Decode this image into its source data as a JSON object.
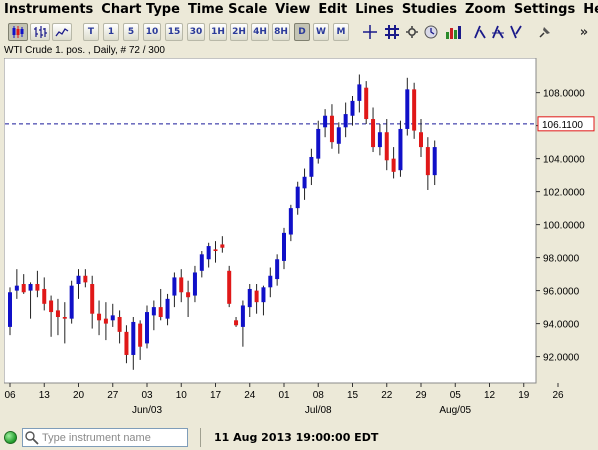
{
  "menu": [
    "Instruments",
    "Chart Type",
    "Time Scale",
    "View",
    "Edit",
    "Lines",
    "Studies",
    "Zoom",
    "Settings",
    "Help"
  ],
  "toolbar": {
    "timeframes": [
      "T",
      "1",
      "5",
      "10",
      "15",
      "30",
      "1H",
      "2H",
      "4H",
      "8H",
      "D",
      "W",
      "M"
    ],
    "selected_timeframe": "D",
    "overflow": "»"
  },
  "chart_header": "WTI Crude 1. pos. , Daily, # 72 / 300",
  "status": {
    "search_placeholder": "Type instrument name",
    "datetime": "11 Aug 2013 19:00:00 EDT"
  },
  "colors": {
    "up": "#1010c8",
    "down": "#e01818",
    "current_line": "#1a1a9a"
  },
  "chart_data": {
    "type": "candlestick",
    "instrument": "WTI Crude 1. pos.",
    "timeframe": "Daily",
    "y_ticks": [
      92,
      94,
      96,
      98,
      100,
      102,
      104,
      106,
      108
    ],
    "y_tick_labels": [
      "92.0000",
      "94.0000",
      "96.0000",
      "98.0000",
      "100.0000",
      "102.0000",
      "104.0000",
      "106.0000",
      "108.0000"
    ],
    "ylim": [
      90.4,
      110.1
    ],
    "current_price": 106.11,
    "current_price_label": "106.1100",
    "x_tick_labels": [
      "06",
      "13",
      "20",
      "27",
      "03",
      "10",
      "17",
      "24",
      "01",
      "08",
      "15",
      "22",
      "29",
      "05",
      "12",
      "19",
      "26"
    ],
    "x_tick_index": [
      0,
      5,
      10,
      15,
      20,
      25,
      30,
      35,
      40,
      45,
      50,
      55,
      60,
      65,
      70,
      75,
      80
    ],
    "month_labels": [
      {
        "label": "Jun/03",
        "index": 20
      },
      {
        "label": "Jul/08",
        "index": 45
      },
      {
        "label": "Aug/05",
        "index": 65
      }
    ],
    "candles": [
      {
        "i": 0,
        "o": 93.8,
        "h": 96.2,
        "l": 93.3,
        "c": 95.9
      },
      {
        "i": 1,
        "o": 96.0,
        "h": 97.3,
        "l": 95.5,
        "c": 96.3
      },
      {
        "i": 2,
        "o": 96.4,
        "h": 97.0,
        "l": 95.8,
        "c": 95.9
      },
      {
        "i": 3,
        "o": 96.0,
        "h": 96.5,
        "l": 94.3,
        "c": 96.4
      },
      {
        "i": 4,
        "o": 96.4,
        "h": 97.2,
        "l": 95.6,
        "c": 96.0
      },
      {
        "i": 5,
        "o": 96.1,
        "h": 96.8,
        "l": 94.8,
        "c": 95.2
      },
      {
        "i": 6,
        "o": 95.4,
        "h": 95.7,
        "l": 93.2,
        "c": 94.7
      },
      {
        "i": 7,
        "o": 94.8,
        "h": 95.5,
        "l": 93.3,
        "c": 94.4
      },
      {
        "i": 8,
        "o": 94.4,
        "h": 95.3,
        "l": 92.8,
        "c": 94.3
      },
      {
        "i": 9,
        "o": 94.3,
        "h": 96.6,
        "l": 94.0,
        "c": 96.3
      },
      {
        "i": 10,
        "o": 96.4,
        "h": 97.3,
        "l": 95.5,
        "c": 96.9
      },
      {
        "i": 11,
        "o": 96.9,
        "h": 97.3,
        "l": 96.2,
        "c": 96.5
      },
      {
        "i": 12,
        "o": 96.4,
        "h": 96.9,
        "l": 93.7,
        "c": 94.6
      },
      {
        "i": 13,
        "o": 94.6,
        "h": 95.4,
        "l": 93.3,
        "c": 94.2
      },
      {
        "i": 14,
        "o": 94.3,
        "h": 95.3,
        "l": 93.0,
        "c": 94.0
      },
      {
        "i": 15,
        "o": 94.2,
        "h": 95.2,
        "l": 93.8,
        "c": 94.5
      },
      {
        "i": 16,
        "o": 94.4,
        "h": 94.8,
        "l": 92.8,
        "c": 93.5
      },
      {
        "i": 17,
        "o": 93.5,
        "h": 93.9,
        "l": 91.6,
        "c": 92.1
      },
      {
        "i": 18,
        "o": 92.1,
        "h": 94.4,
        "l": 91.2,
        "c": 94.1
      },
      {
        "i": 19,
        "o": 94.0,
        "h": 94.2,
        "l": 91.8,
        "c": 92.6
      },
      {
        "i": 20,
        "o": 92.8,
        "h": 95.1,
        "l": 92.5,
        "c": 94.7
      },
      {
        "i": 21,
        "o": 94.5,
        "h": 95.4,
        "l": 93.6,
        "c": 95.0
      },
      {
        "i": 22,
        "o": 95.0,
        "h": 96.1,
        "l": 94.2,
        "c": 94.4
      },
      {
        "i": 23,
        "o": 94.3,
        "h": 95.8,
        "l": 93.9,
        "c": 95.5
      },
      {
        "i": 24,
        "o": 95.7,
        "h": 97.1,
        "l": 95.0,
        "c": 96.8
      },
      {
        "i": 25,
        "o": 96.8,
        "h": 97.3,
        "l": 95.3,
        "c": 95.9
      },
      {
        "i": 26,
        "o": 95.9,
        "h": 96.6,
        "l": 94.4,
        "c": 95.6
      },
      {
        "i": 27,
        "o": 95.7,
        "h": 97.5,
        "l": 95.3,
        "c": 97.1
      },
      {
        "i": 28,
        "o": 97.2,
        "h": 98.4,
        "l": 96.8,
        "c": 98.2
      },
      {
        "i": 29,
        "o": 97.9,
        "h": 98.9,
        "l": 97.4,
        "c": 98.7
      },
      {
        "i": 30,
        "o": 98.5,
        "h": 99.0,
        "l": 97.7,
        "c": 98.4
      },
      {
        "i": 31,
        "o": 98.8,
        "h": 99.3,
        "l": 98.3,
        "c": 98.6
      },
      {
        "i": 32,
        "o": 97.2,
        "h": 97.5,
        "l": 95.0,
        "c": 95.2
      },
      {
        "i": 33,
        "o": 94.2,
        "h": 94.4,
        "l": 93.8,
        "c": 93.9
      },
      {
        "i": 34,
        "o": 93.8,
        "h": 95.4,
        "l": 92.6,
        "c": 95.1
      },
      {
        "i": 35,
        "o": 95.0,
        "h": 96.4,
        "l": 94.4,
        "c": 96.1
      },
      {
        "i": 36,
        "o": 96.0,
        "h": 96.4,
        "l": 94.6,
        "c": 95.3
      },
      {
        "i": 37,
        "o": 95.3,
        "h": 96.3,
        "l": 94.5,
        "c": 96.2
      },
      {
        "i": 38,
        "o": 96.2,
        "h": 97.4,
        "l": 95.6,
        "c": 96.9
      },
      {
        "i": 39,
        "o": 96.7,
        "h": 98.2,
        "l": 96.3,
        "c": 97.9
      },
      {
        "i": 40,
        "o": 97.8,
        "h": 99.8,
        "l": 97.3,
        "c": 99.5
      },
      {
        "i": 41,
        "o": 99.4,
        "h": 101.2,
        "l": 99.0,
        "c": 101.0
      },
      {
        "i": 42,
        "o": 101.0,
        "h": 102.6,
        "l": 100.6,
        "c": 102.3
      },
      {
        "i": 43,
        "o": 102.2,
        "h": 103.4,
        "l": 101.5,
        "c": 102.9
      },
      {
        "i": 44,
        "o": 102.9,
        "h": 104.6,
        "l": 102.4,
        "c": 104.1
      },
      {
        "i": 45,
        "o": 104.0,
        "h": 106.3,
        "l": 103.7,
        "c": 105.8
      },
      {
        "i": 46,
        "o": 105.9,
        "h": 107.0,
        "l": 105.3,
        "c": 106.6
      },
      {
        "i": 47,
        "o": 106.6,
        "h": 107.3,
        "l": 104.6,
        "c": 105.0
      },
      {
        "i": 48,
        "o": 104.9,
        "h": 106.2,
        "l": 104.3,
        "c": 105.9
      },
      {
        "i": 49,
        "o": 105.9,
        "h": 107.4,
        "l": 105.3,
        "c": 106.7
      },
      {
        "i": 50,
        "o": 106.6,
        "h": 107.8,
        "l": 106.0,
        "c": 107.5
      },
      {
        "i": 51,
        "o": 107.5,
        "h": 109.1,
        "l": 106.8,
        "c": 108.5
      },
      {
        "i": 52,
        "o": 108.3,
        "h": 108.7,
        "l": 106.1,
        "c": 106.4
      },
      {
        "i": 53,
        "o": 106.4,
        "h": 107.1,
        "l": 104.4,
        "c": 104.7
      },
      {
        "i": 54,
        "o": 104.7,
        "h": 106.1,
        "l": 104.2,
        "c": 105.6
      },
      {
        "i": 55,
        "o": 105.6,
        "h": 106.4,
        "l": 103.3,
        "c": 103.9
      },
      {
        "i": 56,
        "o": 104.0,
        "h": 104.7,
        "l": 102.8,
        "c": 103.2
      },
      {
        "i": 57,
        "o": 103.3,
        "h": 106.3,
        "l": 102.9,
        "c": 105.8
      },
      {
        "i": 58,
        "o": 105.8,
        "h": 108.9,
        "l": 105.4,
        "c": 108.2
      },
      {
        "i": 59,
        "o": 108.2,
        "h": 108.6,
        "l": 105.2,
        "c": 105.7
      },
      {
        "i": 60,
        "o": 105.6,
        "h": 106.4,
        "l": 104.1,
        "c": 104.7
      },
      {
        "i": 61,
        "o": 104.7,
        "h": 105.3,
        "l": 102.1,
        "c": 103.0
      },
      {
        "i": 62,
        "o": 103.0,
        "h": 105.1,
        "l": 102.4,
        "c": 104.7
      }
    ]
  }
}
